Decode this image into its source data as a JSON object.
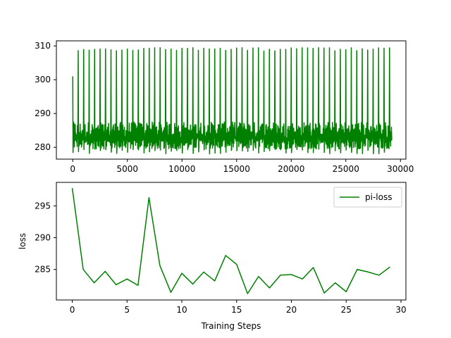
{
  "colors": {
    "series": "#008000",
    "axes": "#000000",
    "legend_border": "#cccccc",
    "background": "#ffffff"
  },
  "chart_data": [
    {
      "type": "line",
      "title": "",
      "xlabel": "",
      "ylabel": "",
      "xlim": [
        -1500,
        30500
      ],
      "ylim": [
        276.5,
        311.5
      ],
      "x_ticks": [
        0,
        5000,
        10000,
        15000,
        20000,
        25000,
        30000
      ],
      "x_tick_labels": [
        "0",
        "5000",
        "10000",
        "15000",
        "20000",
        "25000",
        "30000"
      ],
      "y_ticks": [
        280,
        290,
        300,
        310
      ],
      "y_tick_labels": [
        "280",
        "290",
        "300",
        "310"
      ],
      "grid": false,
      "legend": null,
      "series": [
        {
          "color": "#008000",
          "x_range": [
            0,
            29200
          ],
          "baseline_band": [
            278.0,
            287.5
          ],
          "spike_peak_range": [
            308.5,
            309.5
          ],
          "spike_interval": 500,
          "spike_first_x": 0,
          "spike_last_x": 29000,
          "first_value": 301.0,
          "last_value": 283.5
        }
      ]
    },
    {
      "type": "line",
      "title": "",
      "xlabel": "Training Steps",
      "ylabel": "loss",
      "xlim": [
        -1.45,
        30.45
      ],
      "ylim": [
        280.2,
        298.7
      ],
      "x_ticks": [
        0,
        5,
        10,
        15,
        20,
        25,
        30
      ],
      "x_tick_labels": [
        "0",
        "5",
        "10",
        "15",
        "20",
        "25",
        "30"
      ],
      "y_ticks": [
        285,
        290,
        295
      ],
      "y_tick_labels": [
        "285",
        "290",
        "295"
      ],
      "grid": false,
      "legend": "upper-right",
      "series": [
        {
          "name": "pi-loss",
          "color": "#008000",
          "x": [
            0,
            1,
            2,
            3,
            4,
            5,
            6,
            7,
            8,
            9,
            10,
            11,
            12,
            13,
            14,
            15,
            16,
            17,
            18,
            19,
            20,
            21,
            22,
            23,
            24,
            25,
            26,
            27,
            28,
            29
          ],
          "y": [
            297.8,
            285.0,
            282.9,
            284.7,
            282.6,
            283.5,
            282.5,
            296.3,
            285.6,
            281.4,
            284.4,
            282.7,
            284.6,
            283.2,
            287.2,
            285.8,
            281.2,
            283.9,
            282.1,
            284.1,
            284.2,
            283.5,
            285.3,
            281.3,
            282.9,
            281.5,
            285.0,
            284.6,
            284.1,
            285.4
          ]
        }
      ]
    }
  ]
}
